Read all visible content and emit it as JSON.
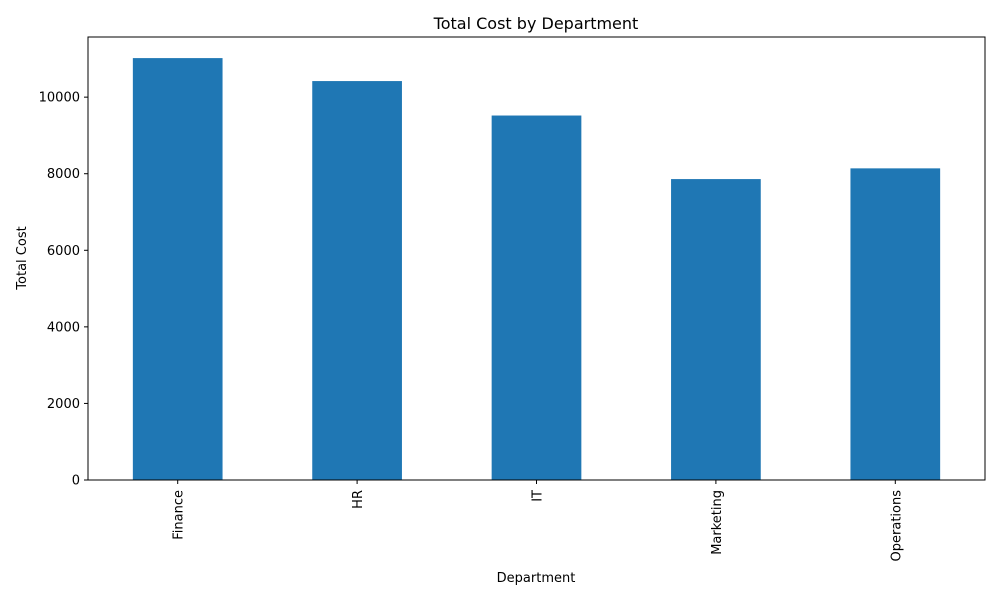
{
  "chart_data": {
    "type": "bar",
    "title": "Total Cost by Department",
    "xlabel": "Department",
    "ylabel": "Total Cost",
    "categories": [
      "Finance",
      "HR",
      "IT",
      "Marketing",
      "Operations"
    ],
    "values": [
      11020,
      10420,
      9520,
      7860,
      8140
    ],
    "ylim": [
      0,
      11571
    ],
    "yticks": [
      0,
      2000,
      4000,
      6000,
      8000,
      10000
    ],
    "bar_color": "#1f77b4",
    "grid": false,
    "legend": "none",
    "xtick_rotation": "vertical"
  }
}
